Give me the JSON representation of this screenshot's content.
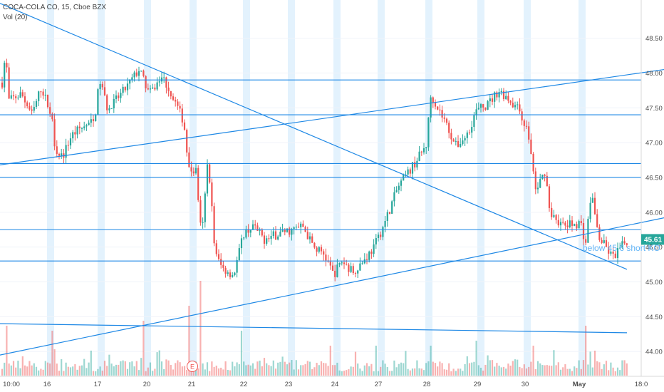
{
  "chart_data": {
    "type": "candlestick",
    "title": "COCA-COLA CO, 15, Cboe BZX",
    "indicator": "Vol (20)",
    "ylim": [
      43.9,
      48.9
    ],
    "y_ticks": [
      "48.50",
      "48.00",
      "47.50",
      "47.00",
      "46.50",
      "46.00",
      "45.50",
      "45.00",
      "44.50",
      "44.00"
    ],
    "x_ticks": [
      "10:00",
      "16",
      "17",
      "20",
      "21",
      "22",
      "23",
      "24",
      "27",
      "28",
      "29",
      "30",
      "May",
      "18:0"
    ],
    "bold_x_tick": "May",
    "current_price": "45.61",
    "event_marker": "E",
    "annotation": "below 45.6 short KO",
    "colors": {
      "up": "#26a69a",
      "down": "#ef5350",
      "line": "#1e88e5",
      "session": "#e3f2fd",
      "price_tag": "#26a69a"
    },
    "horizontal_levels": [
      47.9,
      47.4,
      46.7,
      46.5,
      45.75,
      45.3
    ],
    "trend_lines": [
      {
        "from": [
          0,
          49.0
        ],
        "to": [
          880,
          45.18
        ]
      },
      {
        "from": [
          0,
          46.68
        ],
        "to": [
          932,
          48.05
        ]
      },
      {
        "from": [
          0,
          43.95
        ],
        "to": [
          932,
          45.92
        ]
      },
      {
        "from": [
          0,
          44.4
        ],
        "to": [
          880,
          44.27
        ]
      }
    ],
    "ohlc_anchors": [
      [
        0,
        47.6
      ],
      [
        8,
        48.3
      ],
      [
        12,
        47.6
      ],
      [
        30,
        47.7
      ],
      [
        45,
        47.4
      ],
      [
        58,
        47.8
      ],
      [
        72,
        47.4
      ],
      [
        78,
        46.9
      ],
      [
        88,
        46.8
      ],
      [
        100,
        47.1
      ],
      [
        112,
        47.2
      ],
      [
        132,
        47.3
      ],
      [
        140,
        47.9
      ],
      [
        152,
        47.45
      ],
      [
        162,
        47.6
      ],
      [
        178,
        47.8
      ],
      [
        195,
        48.05
      ],
      [
        210,
        47.7
      ],
      [
        228,
        47.95
      ],
      [
        245,
        47.6
      ],
      [
        258,
        47.3
      ],
      [
        265,
        46.6
      ],
      [
        275,
        46.6
      ],
      [
        283,
        45.6
      ],
      [
        292,
        46.8
      ],
      [
        302,
        45.4
      ],
      [
        312,
        45.2
      ],
      [
        328,
        45.1
      ],
      [
        342,
        45.7
      ],
      [
        355,
        45.8
      ],
      [
        372,
        45.6
      ],
      [
        392,
        45.7
      ],
      [
        412,
        45.75
      ],
      [
        425,
        45.8
      ],
      [
        440,
        45.5
      ],
      [
        455,
        45.4
      ],
      [
        468,
        45.1
      ],
      [
        480,
        45.3
      ],
      [
        495,
        45.15
      ],
      [
        510,
        45.3
      ],
      [
        525,
        45.5
      ],
      [
        540,
        45.85
      ],
      [
        558,
        46.35
      ],
      [
        575,
        46.6
      ],
      [
        598,
        46.95
      ],
      [
        605,
        47.7
      ],
      [
        612,
        47.55
      ],
      [
        625,
        47.3
      ],
      [
        640,
        46.95
      ],
      [
        655,
        47.1
      ],
      [
        668,
        47.45
      ],
      [
        685,
        47.55
      ],
      [
        700,
        47.75
      ],
      [
        712,
        47.65
      ],
      [
        730,
        47.45
      ],
      [
        742,
        47.1
      ],
      [
        752,
        46.3
      ],
      [
        765,
        46.6
      ],
      [
        772,
        46.0
      ],
      [
        790,
        45.8
      ],
      [
        815,
        45.85
      ],
      [
        822,
        45.55
      ],
      [
        830,
        46.3
      ],
      [
        840,
        45.65
      ],
      [
        860,
        45.35
      ],
      [
        880,
        45.6
      ]
    ],
    "volume_spikes": [
      [
        8,
        0.5
      ],
      [
        72,
        0.45
      ],
      [
        200,
        0.55
      ],
      [
        265,
        0.7
      ],
      [
        280,
        0.95
      ],
      [
        340,
        0.45
      ],
      [
        465,
        0.3
      ],
      [
        528,
        0.3
      ],
      [
        605,
        0.3
      ],
      [
        668,
        0.35
      ],
      [
        750,
        0.3
      ],
      [
        822,
        0.5
      ],
      [
        835,
        0.25
      ]
    ]
  }
}
